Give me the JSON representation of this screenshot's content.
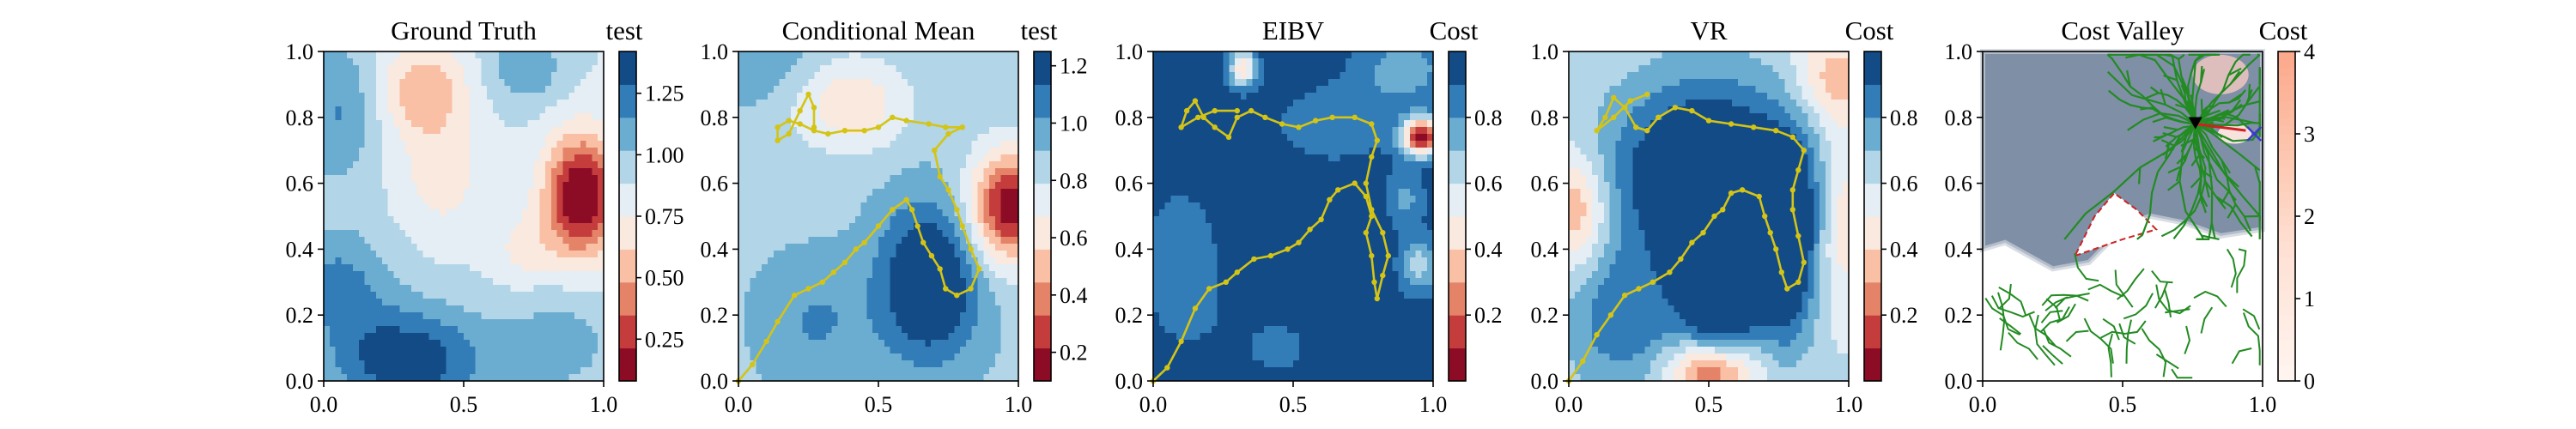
{
  "chart_data": [
    {
      "type": "heatmap",
      "title": "Ground Truth",
      "colorbar_label": "test",
      "colorbar_ticks": [
        "0.25",
        "0.50",
        "0.75",
        "1.00",
        "1.25"
      ],
      "colorbar_tick_values": [
        0.25,
        0.5,
        0.75,
        1.0,
        1.25
      ],
      "vmin": 0.08,
      "vmax": 1.42,
      "colormap": "RdBu",
      "xlim": [
        0.0,
        1.0
      ],
      "ylim": [
        0.0,
        1.0
      ],
      "xticks": [
        "0.0",
        "0.5",
        "1.0"
      ],
      "yticks": [
        "0.0",
        "0.2",
        "0.4",
        "0.6",
        "0.8",
        "1.0"
      ],
      "field": {
        "base": 0.88,
        "features": [
          {
            "x": 0.92,
            "y": 0.56,
            "sx": 0.09,
            "sy": 0.13,
            "amp": -0.85
          },
          {
            "x": 0.72,
            "y": 0.4,
            "sx": 0.08,
            "sy": 0.08,
            "amp": -0.18
          },
          {
            "x": 0.36,
            "y": 0.88,
            "sx": 0.11,
            "sy": 0.1,
            "amp": -0.38
          },
          {
            "x": 0.42,
            "y": 0.62,
            "sx": 0.1,
            "sy": 0.12,
            "amp": -0.2
          },
          {
            "x": 0.05,
            "y": 0.82,
            "sx": 0.1,
            "sy": 0.16,
            "amp": 0.28
          },
          {
            "x": 0.72,
            "y": 0.95,
            "sx": 0.1,
            "sy": 0.08,
            "amp": 0.25
          },
          {
            "x": 0.3,
            "y": 0.06,
            "sx": 0.2,
            "sy": 0.12,
            "amp": 0.52
          },
          {
            "x": 0.05,
            "y": 0.3,
            "sx": 0.13,
            "sy": 0.12,
            "amp": 0.3
          },
          {
            "x": 0.85,
            "y": 0.12,
            "sx": 0.15,
            "sy": 0.12,
            "amp": 0.2
          }
        ]
      }
    },
    {
      "type": "heatmap",
      "title": "Conditional Mean",
      "colorbar_label": "test",
      "colorbar_ticks": [
        "0.2",
        "0.4",
        "0.6",
        "0.8",
        "1.0",
        "1.2"
      ],
      "colorbar_tick_values": [
        0.2,
        0.4,
        0.6,
        0.8,
        1.0,
        1.2
      ],
      "vmin": 0.1,
      "vmax": 1.25,
      "colormap": "RdBu",
      "xlim": [
        0.0,
        1.0
      ],
      "ylim": [
        0.0,
        1.0
      ],
      "xticks": [
        "0.0",
        "0.5",
        "1.0"
      ],
      "yticks": [
        "0.0",
        "0.2",
        "0.4",
        "0.6",
        "0.8",
        "1.0"
      ],
      "field": {
        "base": 0.88,
        "features": [
          {
            "x": 0.97,
            "y": 0.53,
            "sx": 0.1,
            "sy": 0.12,
            "amp": -0.75
          },
          {
            "x": 0.4,
            "y": 0.84,
            "sx": 0.15,
            "sy": 0.1,
            "amp": -0.3
          },
          {
            "x": 0.68,
            "y": 0.3,
            "sx": 0.12,
            "sy": 0.16,
            "amp": 0.5
          },
          {
            "x": 0.28,
            "y": 0.18,
            "sx": 0.14,
            "sy": 0.13,
            "amp": 0.15
          },
          {
            "x": 0.08,
            "y": 0.98,
            "sx": 0.14,
            "sy": 0.1,
            "amp": 0.12
          }
        ]
      },
      "path": [
        [
          0.0,
          0.0
        ],
        [
          0.05,
          0.05
        ],
        [
          0.1,
          0.12
        ],
        [
          0.14,
          0.18
        ],
        [
          0.2,
          0.26
        ],
        [
          0.25,
          0.28
        ],
        [
          0.3,
          0.3
        ],
        [
          0.34,
          0.33
        ],
        [
          0.38,
          0.36
        ],
        [
          0.42,
          0.4
        ],
        [
          0.45,
          0.42
        ],
        [
          0.5,
          0.47
        ],
        [
          0.55,
          0.52
        ],
        [
          0.6,
          0.55
        ],
        [
          0.62,
          0.52
        ],
        [
          0.64,
          0.47
        ],
        [
          0.66,
          0.42
        ],
        [
          0.69,
          0.38
        ],
        [
          0.72,
          0.34
        ],
        [
          0.74,
          0.28
        ],
        [
          0.78,
          0.26
        ],
        [
          0.83,
          0.28
        ],
        [
          0.86,
          0.34
        ],
        [
          0.83,
          0.4
        ],
        [
          0.8,
          0.47
        ],
        [
          0.78,
          0.52
        ],
        [
          0.75,
          0.58
        ],
        [
          0.72,
          0.62
        ],
        [
          0.7,
          0.7
        ],
        [
          0.75,
          0.75
        ],
        [
          0.8,
          0.77
        ],
        [
          0.74,
          0.77
        ],
        [
          0.68,
          0.78
        ],
        [
          0.6,
          0.79
        ],
        [
          0.55,
          0.8
        ],
        [
          0.5,
          0.77
        ],
        [
          0.45,
          0.76
        ],
        [
          0.38,
          0.76
        ],
        [
          0.32,
          0.75
        ],
        [
          0.27,
          0.76
        ],
        [
          0.22,
          0.78
        ],
        [
          0.18,
          0.79
        ],
        [
          0.14,
          0.77
        ],
        [
          0.14,
          0.73
        ],
        [
          0.18,
          0.75
        ],
        [
          0.22,
          0.82
        ],
        [
          0.25,
          0.87
        ],
        [
          0.27,
          0.83
        ],
        [
          0.27,
          0.77
        ]
      ]
    },
    {
      "type": "heatmap",
      "title": "EIBV",
      "colorbar_label": "Cost",
      "colorbar_ticks": [
        "0.2",
        "0.4",
        "0.6",
        "0.8"
      ],
      "colorbar_tick_values": [
        0.2,
        0.4,
        0.6,
        0.8
      ],
      "vmin": 0.0,
      "vmax": 1.0,
      "colormap": "RdBu",
      "xlim": [
        0.0,
        1.0
      ],
      "ylim": [
        0.0,
        1.0
      ],
      "xticks": [
        "0.0",
        "0.5",
        "1.0"
      ],
      "yticks": [
        "0.0",
        "0.2",
        "0.4",
        "0.6",
        "0.8",
        "1.0"
      ],
      "field": {
        "base": 0.97,
        "features": [
          {
            "x": 0.96,
            "y": 0.74,
            "sx": 0.05,
            "sy": 0.04,
            "amp": -0.92
          },
          {
            "x": 0.32,
            "y": 0.95,
            "sx": 0.035,
            "sy": 0.04,
            "amp": -0.55
          },
          {
            "x": 0.1,
            "y": 0.35,
            "sx": 0.12,
            "sy": 0.2,
            "amp": -0.12
          },
          {
            "x": 0.65,
            "y": 0.78,
            "sx": 0.18,
            "sy": 0.1,
            "amp": -0.12
          },
          {
            "x": 0.95,
            "y": 0.35,
            "sx": 0.05,
            "sy": 0.06,
            "amp": -0.32
          },
          {
            "x": 0.9,
            "y": 0.55,
            "sx": 0.05,
            "sy": 0.06,
            "amp": -0.2
          },
          {
            "x": 0.9,
            "y": 0.95,
            "sx": 0.12,
            "sy": 0.08,
            "amp": -0.22
          },
          {
            "x": 0.45,
            "y": 0.1,
            "sx": 0.15,
            "sy": 0.12,
            "amp": -0.08
          }
        ]
      },
      "path": [
        [
          0.0,
          0.0
        ],
        [
          0.05,
          0.04
        ],
        [
          0.1,
          0.12
        ],
        [
          0.15,
          0.22
        ],
        [
          0.2,
          0.28
        ],
        [
          0.26,
          0.3
        ],
        [
          0.3,
          0.33
        ],
        [
          0.36,
          0.37
        ],
        [
          0.42,
          0.38
        ],
        [
          0.48,
          0.4
        ],
        [
          0.52,
          0.42
        ],
        [
          0.56,
          0.46
        ],
        [
          0.6,
          0.49
        ],
        [
          0.63,
          0.55
        ],
        [
          0.66,
          0.58
        ],
        [
          0.72,
          0.6
        ],
        [
          0.76,
          0.56
        ],
        [
          0.78,
          0.5
        ],
        [
          0.76,
          0.45
        ],
        [
          0.78,
          0.38
        ],
        [
          0.79,
          0.3
        ],
        [
          0.8,
          0.25
        ],
        [
          0.82,
          0.32
        ],
        [
          0.84,
          0.38
        ],
        [
          0.82,
          0.45
        ],
        [
          0.78,
          0.52
        ],
        [
          0.76,
          0.6
        ],
        [
          0.78,
          0.68
        ],
        [
          0.8,
          0.73
        ],
        [
          0.78,
          0.78
        ],
        [
          0.72,
          0.8
        ],
        [
          0.64,
          0.8
        ],
        [
          0.58,
          0.79
        ],
        [
          0.52,
          0.77
        ],
        [
          0.46,
          0.78
        ],
        [
          0.4,
          0.8
        ],
        [
          0.35,
          0.82
        ],
        [
          0.3,
          0.8
        ],
        [
          0.27,
          0.74
        ],
        [
          0.22,
          0.77
        ],
        [
          0.18,
          0.8
        ],
        [
          0.15,
          0.85
        ],
        [
          0.12,
          0.82
        ],
        [
          0.1,
          0.77
        ],
        [
          0.16,
          0.8
        ],
        [
          0.22,
          0.82
        ],
        [
          0.3,
          0.82
        ]
      ]
    },
    {
      "type": "heatmap",
      "title": "VR",
      "colorbar_label": "Cost",
      "colorbar_ticks": [
        "0.2",
        "0.4",
        "0.6",
        "0.8"
      ],
      "colorbar_tick_values": [
        0.2,
        0.4,
        0.6,
        0.8
      ],
      "vmin": 0.0,
      "vmax": 1.0,
      "colormap": "RdBu",
      "xlim": [
        0.0,
        1.0
      ],
      "ylim": [
        0.0,
        1.0
      ],
      "xticks": [
        "0.0",
        "0.5",
        "1.0"
      ],
      "yticks": [
        "0.0",
        "0.2",
        "0.4",
        "0.6",
        "0.8",
        "1.0"
      ],
      "field": {
        "base": 0.62,
        "features": [
          {
            "x": 0.5,
            "y": 0.62,
            "sx": 0.24,
            "sy": 0.2,
            "amp": 0.55
          },
          {
            "x": 0.55,
            "y": 0.25,
            "sx": 0.1,
            "sy": 0.2,
            "amp": 0.5
          },
          {
            "x": 0.78,
            "y": 0.4,
            "sx": 0.07,
            "sy": 0.2,
            "amp": 0.45
          },
          {
            "x": 0.2,
            "y": 0.18,
            "sx": 0.15,
            "sy": 0.15,
            "amp": 0.25
          },
          {
            "x": 0.52,
            "y": 0.03,
            "sx": 0.11,
            "sy": 0.07,
            "amp": -0.62
          },
          {
            "x": 0.02,
            "y": 0.52,
            "sx": 0.08,
            "sy": 0.12,
            "amp": -0.35
          },
          {
            "x": 0.95,
            "y": 0.92,
            "sx": 0.1,
            "sy": 0.1,
            "amp": -0.28
          },
          {
            "x": 0.98,
            "y": 0.5,
            "sx": 0.06,
            "sy": 0.2,
            "amp": -0.22
          }
        ]
      },
      "path": [
        [
          0.0,
          0.0
        ],
        [
          0.05,
          0.06
        ],
        [
          0.1,
          0.14
        ],
        [
          0.15,
          0.2
        ],
        [
          0.2,
          0.26
        ],
        [
          0.25,
          0.28
        ],
        [
          0.3,
          0.3
        ],
        [
          0.36,
          0.33
        ],
        [
          0.4,
          0.37
        ],
        [
          0.44,
          0.42
        ],
        [
          0.48,
          0.45
        ],
        [
          0.52,
          0.5
        ],
        [
          0.55,
          0.52
        ],
        [
          0.58,
          0.57
        ],
        [
          0.62,
          0.58
        ],
        [
          0.68,
          0.56
        ],
        [
          0.7,
          0.5
        ],
        [
          0.72,
          0.45
        ],
        [
          0.74,
          0.4
        ],
        [
          0.76,
          0.33
        ],
        [
          0.78,
          0.28
        ],
        [
          0.82,
          0.3
        ],
        [
          0.84,
          0.36
        ],
        [
          0.82,
          0.44
        ],
        [
          0.8,
          0.52
        ],
        [
          0.8,
          0.58
        ],
        [
          0.82,
          0.64
        ],
        [
          0.84,
          0.7
        ],
        [
          0.8,
          0.74
        ],
        [
          0.74,
          0.76
        ],
        [
          0.66,
          0.77
        ],
        [
          0.58,
          0.78
        ],
        [
          0.5,
          0.79
        ],
        [
          0.44,
          0.82
        ],
        [
          0.38,
          0.83
        ],
        [
          0.32,
          0.8
        ],
        [
          0.28,
          0.76
        ],
        [
          0.24,
          0.77
        ],
        [
          0.2,
          0.83
        ],
        [
          0.16,
          0.86
        ],
        [
          0.13,
          0.8
        ],
        [
          0.1,
          0.76
        ],
        [
          0.16,
          0.8
        ],
        [
          0.22,
          0.85
        ],
        [
          0.28,
          0.87
        ]
      ]
    },
    {
      "type": "heatmap",
      "title": "Cost Valley",
      "colorbar_label": "Cost",
      "colorbar_ticks": [
        "0",
        "1",
        "2",
        "3",
        "4"
      ],
      "colorbar_tick_values": [
        0,
        1,
        2,
        3,
        4
      ],
      "vmin": 0.0,
      "vmax": 4.0,
      "colormap": "Reds",
      "xlim": [
        0.0,
        1.0
      ],
      "ylim": [
        0.0,
        1.0
      ],
      "xticks": [
        "0.0",
        "0.5",
        "1.0"
      ],
      "yticks": [
        "0.0",
        "0.2",
        "0.4",
        "0.6",
        "0.8",
        "1.0"
      ],
      "highlight_region": [
        [
          0.0,
          0.4
        ],
        [
          0.08,
          0.42
        ],
        [
          0.25,
          0.34
        ],
        [
          0.38,
          0.36
        ],
        [
          0.52,
          0.48
        ],
        [
          0.6,
          0.5
        ],
        [
          0.72,
          0.48
        ],
        [
          0.85,
          0.44
        ],
        [
          1.0,
          0.46
        ],
        [
          1.0,
          1.0
        ],
        [
          0.0,
          1.0
        ]
      ],
      "obstacle_polygon": [
        [
          0.33,
          0.38
        ],
        [
          0.5,
          0.43
        ],
        [
          0.62,
          0.46
        ],
        [
          0.55,
          0.52
        ],
        [
          0.47,
          0.57
        ],
        [
          0.4,
          0.5
        ]
      ],
      "current_point": [
        0.76,
        0.78
      ],
      "target_point": [
        0.97,
        0.75
      ],
      "tree_color": "#228b22",
      "obstacle_color": "#cc2222",
      "target_color": "#3a3acc"
    }
  ]
}
